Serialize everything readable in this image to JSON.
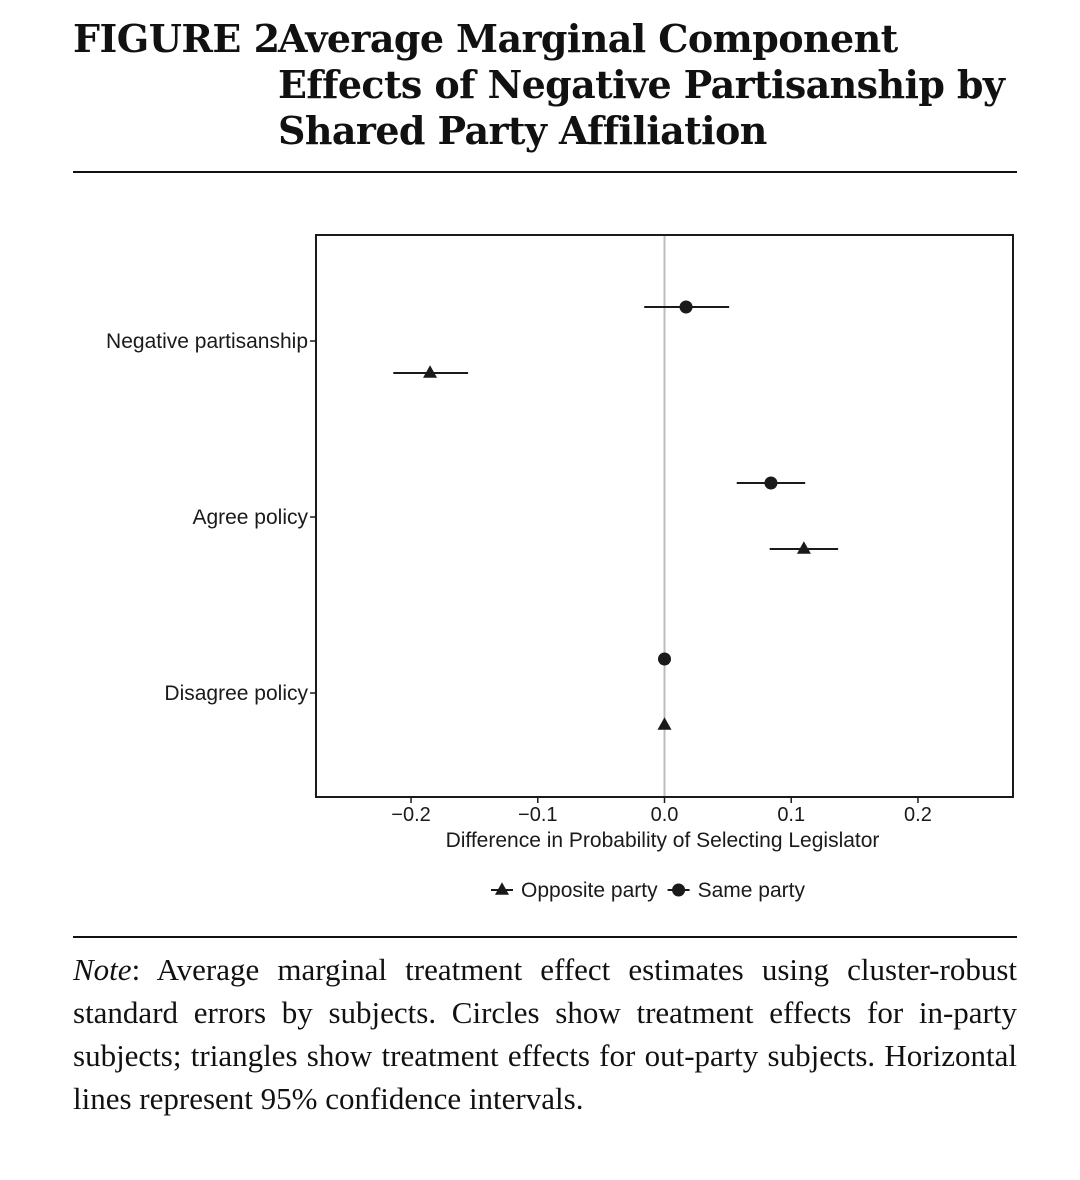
{
  "figure": {
    "label": "FIGURE 2",
    "title": "Average Marginal Component Effects of Negative Partisanship by Shared Party Affiliation"
  },
  "note": {
    "label": "Note",
    "text": ": Average marginal treatment effect estimates using cluster-robust standard errors by subjects. Circles show treatment effects for in-party subjects; triangles show treatment effects for out-party subjects. Horizontal lines represent 95% confidence intervals."
  },
  "chart_data": {
    "type": "scatter",
    "title": "",
    "xlabel": "Difference in Probability of Selecting Legislator",
    "ylabel": "",
    "xlim": [
      -0.275,
      0.275
    ],
    "x_ticks": [
      -0.2,
      -0.1,
      0.0,
      0.1,
      0.2
    ],
    "x_tick_labels": [
      "−0.2",
      "−0.1",
      "0.0",
      "0.1",
      "0.2"
    ],
    "categories": [
      "Negative partisanship",
      "Agree policy",
      "Disagree policy"
    ],
    "reference_line": 0.0,
    "grid": false,
    "legend_position": "bottom",
    "series": [
      {
        "name": "Opposite party",
        "marker": "triangle",
        "color": "#1a1a1a",
        "values": [
          -0.185,
          0.11,
          0.0
        ],
        "ci_low": [
          -0.214,
          0.083,
          0.0
        ],
        "ci_high": [
          -0.155,
          0.137,
          0.0
        ]
      },
      {
        "name": "Same party",
        "marker": "circle",
        "color": "#1a1a1a",
        "values": [
          0.017,
          0.084,
          0.0
        ],
        "ci_low": [
          -0.016,
          0.057,
          0.0
        ],
        "ci_high": [
          0.051,
          0.111,
          0.0
        ]
      }
    ]
  }
}
